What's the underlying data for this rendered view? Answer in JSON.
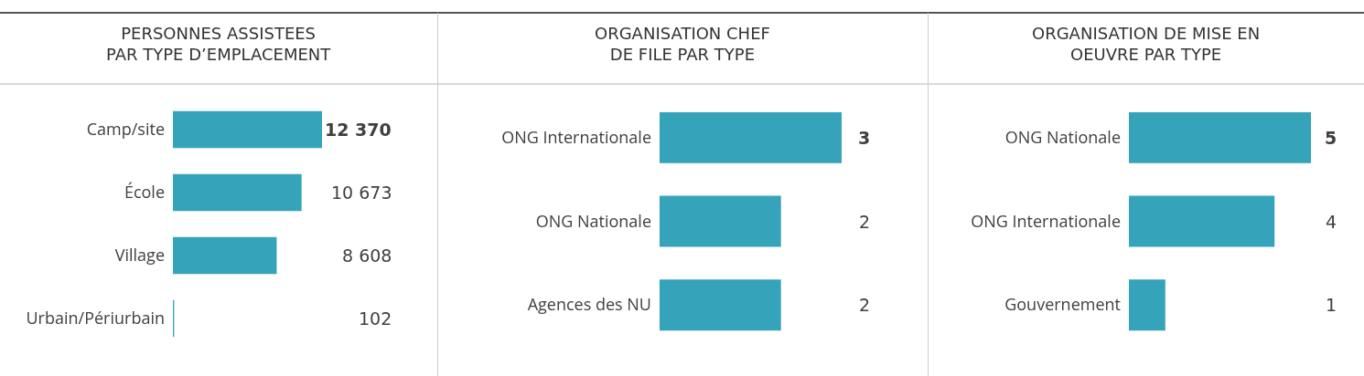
{
  "chart_data": [
    {
      "type": "bar",
      "orientation": "horizontal",
      "title": "PERSONNES ASSISTEES\nPAR TYPE D’EMPLACEMENT",
      "categories": [
        "Camp/site",
        "École",
        "Village",
        "Urbain/Périurbain"
      ],
      "values": [
        12370,
        10673,
        8608,
        102
      ],
      "value_labels": [
        "12 370",
        "10 673",
        "8 608",
        "102"
      ],
      "color": "#35a3b9",
      "tick_labels": "y"
    },
    {
      "type": "bar",
      "orientation": "horizontal",
      "title": "ORGANISATION CHEF\nDE FILE PAR TYPE",
      "categories": [
        "ONG Internationale",
        "ONG Nationale",
        "Agences des NU"
      ],
      "values": [
        3,
        2,
        2
      ],
      "value_labels": [
        "3",
        "2",
        "2"
      ],
      "color": "#35a3b9",
      "tick_labels": "y"
    },
    {
      "type": "bar",
      "orientation": "horizontal",
      "title": "ORGANISATION DE MISE EN\nOEUVRE PAR TYPE",
      "categories": [
        "ONG Nationale",
        "ONG Internationale",
        "Gouvernement"
      ],
      "values": [
        5,
        4,
        1
      ],
      "value_labels": [
        "5",
        "4",
        "1"
      ],
      "color": "#35a3b9",
      "tick_labels": "y"
    }
  ]
}
